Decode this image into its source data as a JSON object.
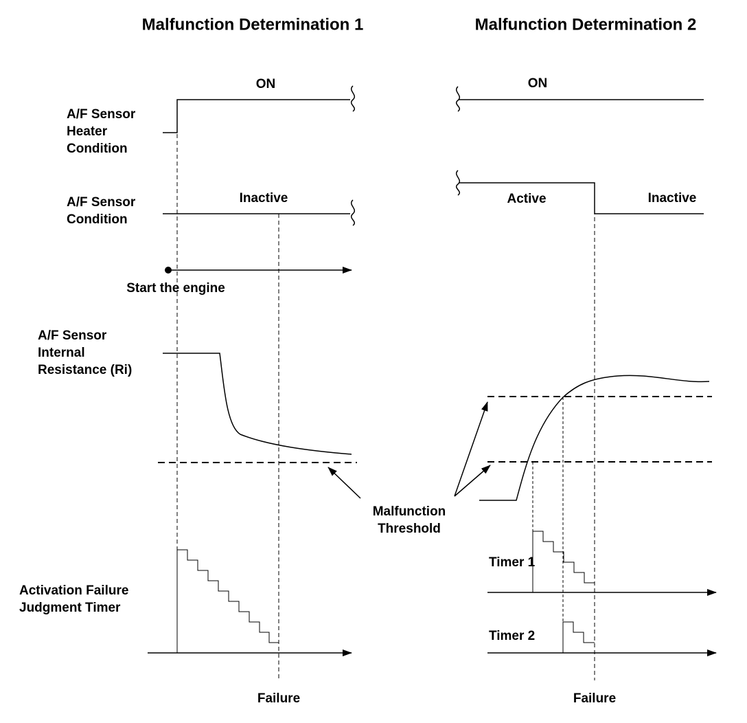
{
  "left_panel": {
    "title": "Malfunction Determination 1",
    "heater_label": [
      "A/F Sensor",
      "Heater",
      "Condition"
    ],
    "heater_state": "ON",
    "sensor_label": [
      "A/F Sensor",
      "Condition"
    ],
    "sensor_state": "Inactive",
    "start_label": "Start the engine",
    "resistance_label": [
      "A/F Sensor",
      "Internal",
      "Resistance (Ri)"
    ],
    "timer_label": [
      "Activation Failure",
      "Judgment Timer"
    ],
    "failure_label": "Failure"
  },
  "right_panel": {
    "title": "Malfunction Determination 2",
    "heater_state": "ON",
    "sensor_state_before": "Active",
    "sensor_state_after": "Inactive",
    "timer1_label": "Timer 1",
    "timer2_label": "Timer 2",
    "failure_label": "Failure"
  },
  "threshold_label": [
    "Malfunction",
    "Threshold"
  ]
}
